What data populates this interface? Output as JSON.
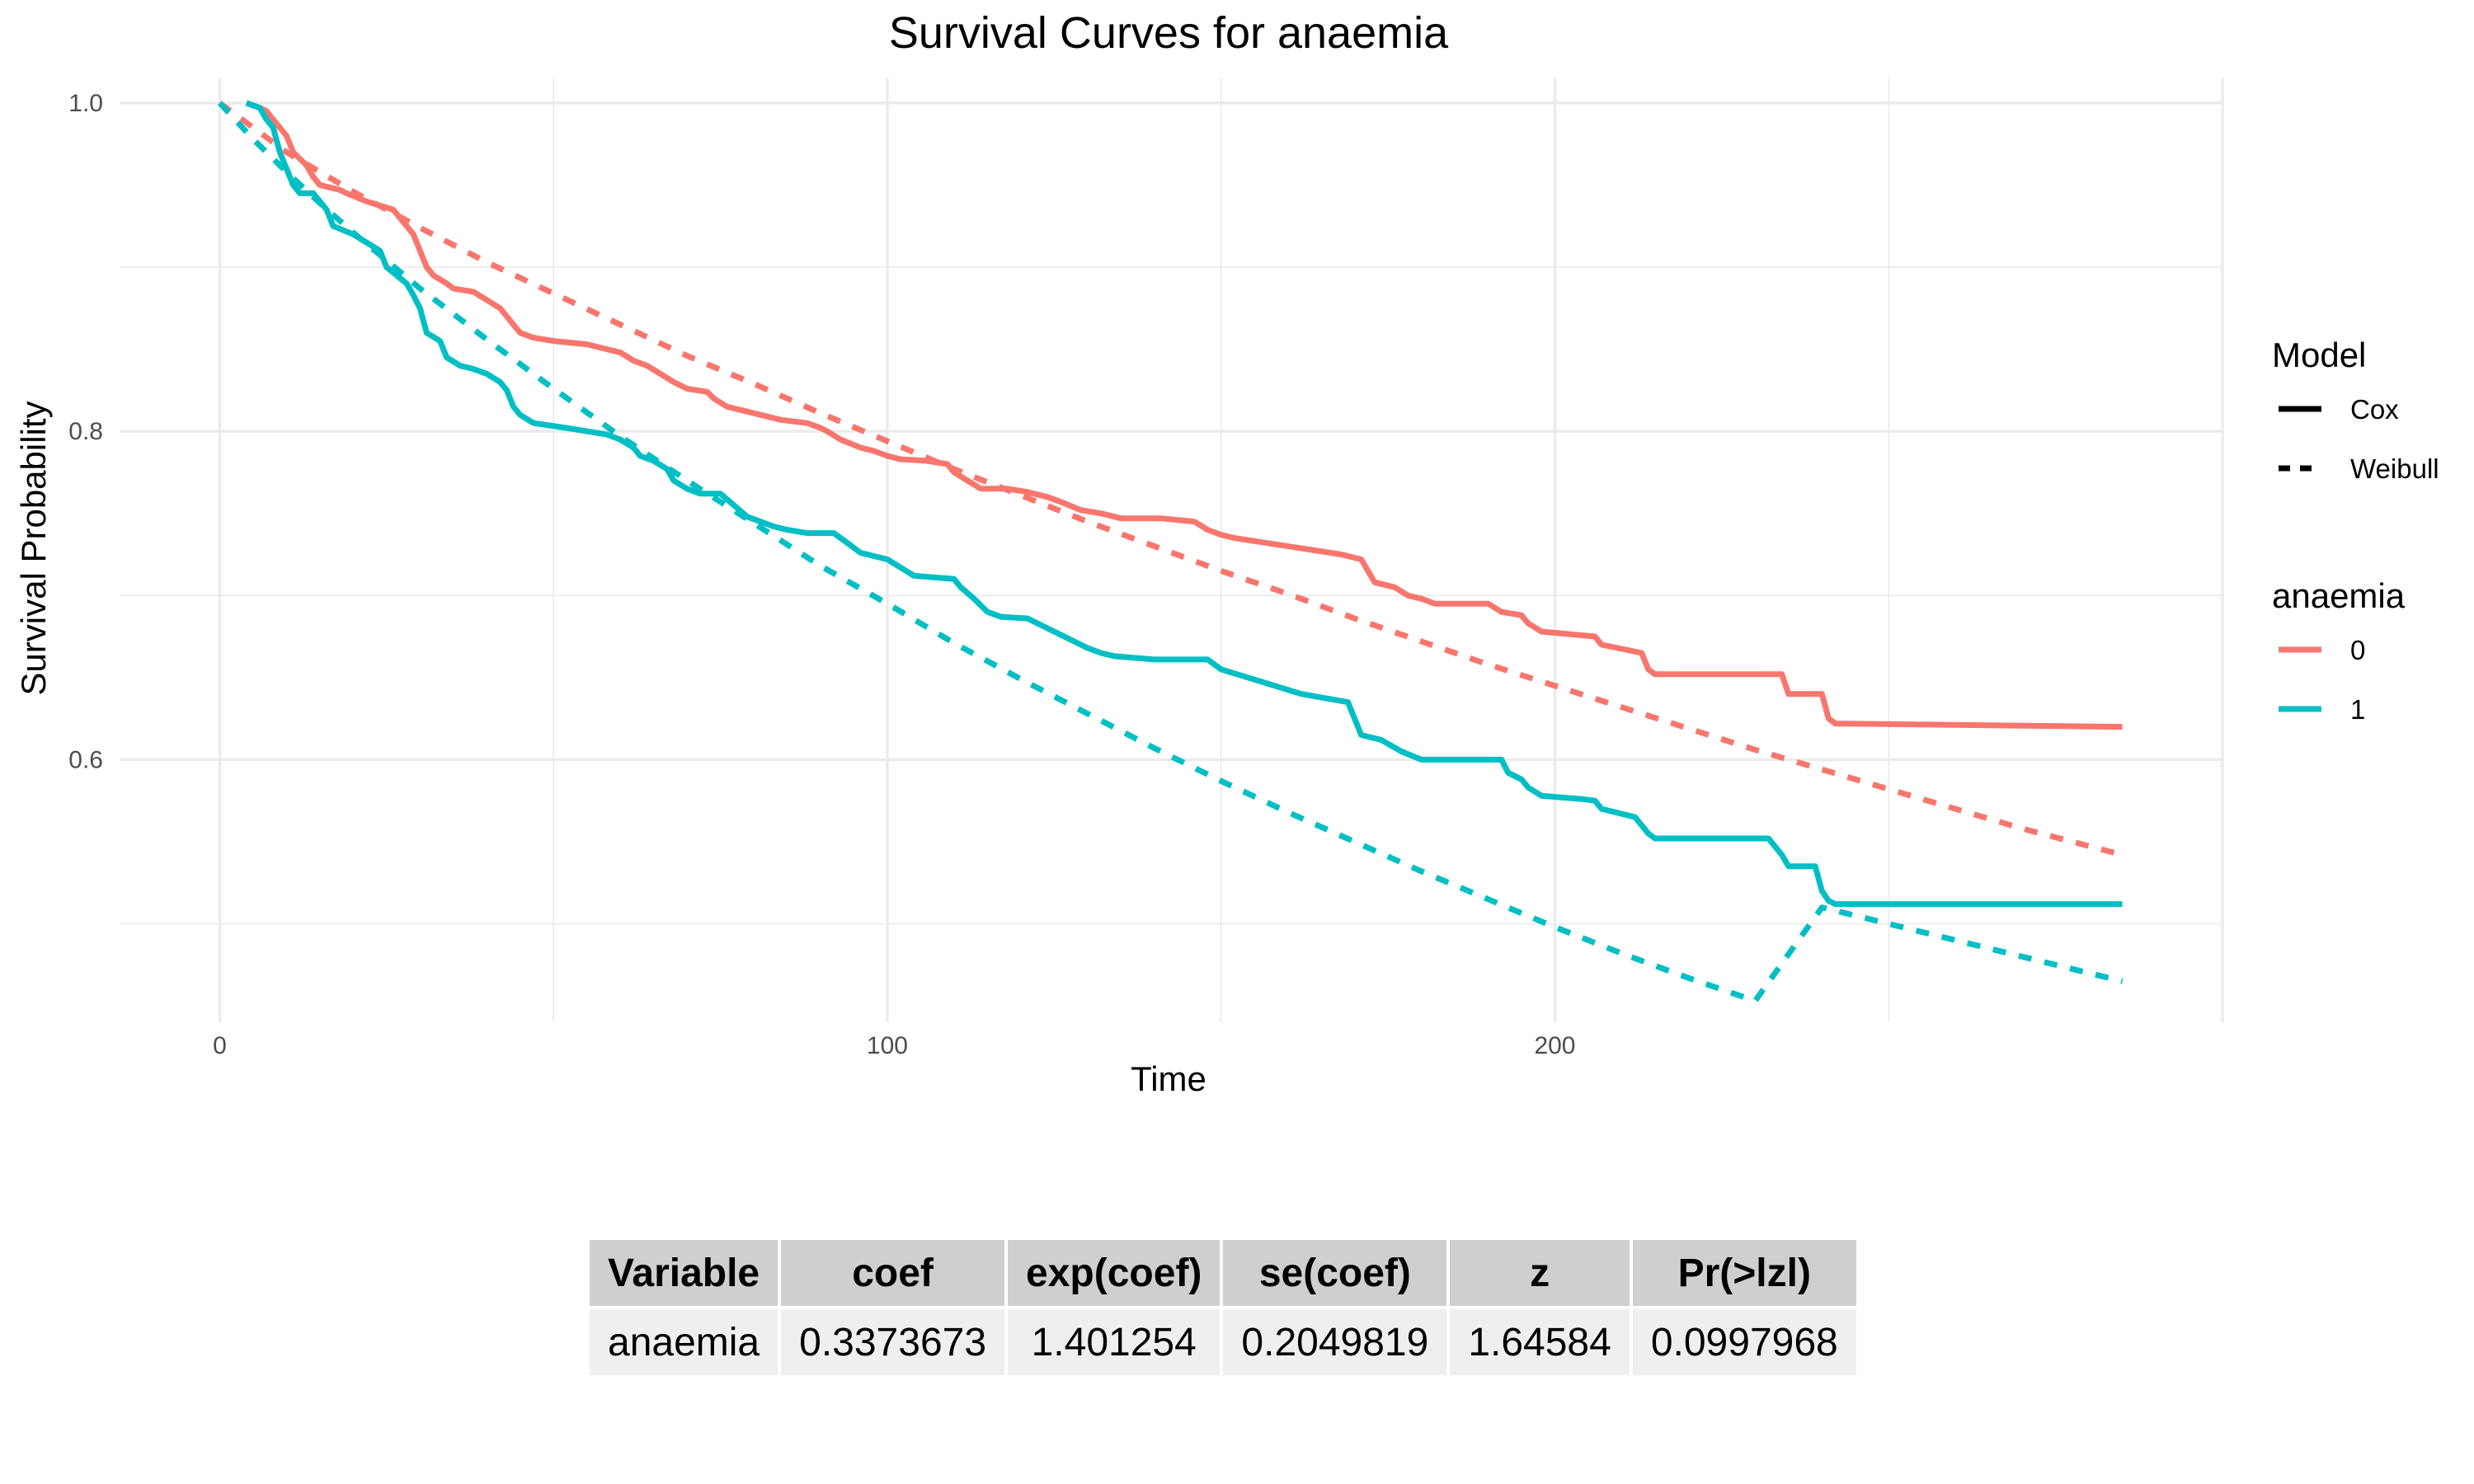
{
  "chart_data": {
    "type": "line",
    "title": "Survival Curves for anaemia",
    "xlabel": "Time",
    "ylabel": "Survival Probability",
    "xlim": [
      -15,
      300
    ],
    "ylim": [
      0.44,
      1.015
    ],
    "x_ticks": [
      0,
      100,
      200
    ],
    "x_tick_labels": [
      "0",
      "100",
      "200"
    ],
    "y_ticks": [
      0.6,
      0.8,
      1.0
    ],
    "y_tick_labels": [
      "0.6",
      "0.8",
      "1.0"
    ],
    "grid": true,
    "legend_position": "right",
    "colors": {
      "0": "#F8766D",
      "1": "#00BFC4"
    },
    "legends": [
      {
        "title": "Model",
        "items": [
          {
            "label": "Cox",
            "linetype": "solid"
          },
          {
            "label": "Weibull",
            "linetype": "dashed"
          }
        ]
      },
      {
        "title": "anaemia",
        "items": [
          {
            "label": "0",
            "color": "#F8766D"
          },
          {
            "label": "1",
            "color": "#00BFC4"
          }
        ]
      }
    ],
    "series": [
      {
        "model": "Cox",
        "group": "0",
        "linetype": "solid",
        "color": "#F8766D",
        "points": [
          [
            4,
            1.0
          ],
          [
            6,
            0.997
          ],
          [
            7,
            0.995
          ],
          [
            8,
            0.99
          ],
          [
            10,
            0.98
          ],
          [
            11,
            0.97
          ],
          [
            13,
            0.962
          ],
          [
            14,
            0.955
          ],
          [
            15,
            0.95
          ],
          [
            18,
            0.947
          ],
          [
            19,
            0.945
          ],
          [
            22,
            0.94
          ],
          [
            26,
            0.935
          ],
          [
            27,
            0.93
          ],
          [
            28,
            0.925
          ],
          [
            29,
            0.92
          ],
          [
            30,
            0.91
          ],
          [
            31,
            0.9
          ],
          [
            32,
            0.895
          ],
          [
            34,
            0.89
          ],
          [
            35,
            0.887
          ],
          [
            38,
            0.885
          ],
          [
            40,
            0.88
          ],
          [
            42,
            0.875
          ],
          [
            44,
            0.865
          ],
          [
            45,
            0.86
          ],
          [
            47,
            0.857
          ],
          [
            50,
            0.855
          ],
          [
            55,
            0.853
          ],
          [
            58,
            0.85
          ],
          [
            60,
            0.848
          ],
          [
            62,
            0.843
          ],
          [
            64,
            0.84
          ],
          [
            66,
            0.835
          ],
          [
            68,
            0.83
          ],
          [
            70,
            0.826
          ],
          [
            73,
            0.824
          ],
          [
            74,
            0.82
          ],
          [
            76,
            0.815
          ],
          [
            79,
            0.812
          ],
          [
            81,
            0.81
          ],
          [
            84,
            0.807
          ],
          [
            88,
            0.805
          ],
          [
            90,
            0.802
          ],
          [
            91,
            0.8
          ],
          [
            93,
            0.795
          ],
          [
            96,
            0.79
          ],
          [
            98,
            0.788
          ],
          [
            100,
            0.785
          ],
          [
            102,
            0.783
          ],
          [
            106,
            0.782
          ],
          [
            109,
            0.78
          ],
          [
            110,
            0.775
          ],
          [
            112,
            0.77
          ],
          [
            114,
            0.765
          ],
          [
            118,
            0.765
          ],
          [
            121,
            0.763
          ],
          [
            124,
            0.76
          ],
          [
            126,
            0.757
          ],
          [
            129,
            0.752
          ],
          [
            132,
            0.75
          ],
          [
            135,
            0.747
          ],
          [
            141,
            0.747
          ],
          [
            146,
            0.745
          ],
          [
            148,
            0.74
          ],
          [
            150,
            0.737
          ],
          [
            152,
            0.735
          ],
          [
            168,
            0.725
          ],
          [
            171,
            0.722
          ],
          [
            172,
            0.715
          ],
          [
            173,
            0.708
          ],
          [
            176,
            0.705
          ],
          [
            178,
            0.7
          ],
          [
            180,
            0.698
          ],
          [
            182,
            0.695
          ],
          [
            190,
            0.695
          ],
          [
            192,
            0.69
          ],
          [
            195,
            0.688
          ],
          [
            196,
            0.683
          ],
          [
            198,
            0.678
          ],
          [
            206,
            0.675
          ],
          [
            207,
            0.67
          ],
          [
            213,
            0.665
          ],
          [
            214,
            0.655
          ],
          [
            215,
            0.652
          ],
          [
            225,
            0.652
          ],
          [
            234,
            0.652
          ],
          [
            235,
            0.64
          ],
          [
            240,
            0.64
          ],
          [
            241,
            0.625
          ],
          [
            242,
            0.622
          ],
          [
            285,
            0.62
          ]
        ]
      },
      {
        "model": "Cox",
        "group": "1",
        "linetype": "solid",
        "color": "#00BFC4",
        "points": [
          [
            4,
            1.0
          ],
          [
            6,
            0.997
          ],
          [
            7,
            0.99
          ],
          [
            8,
            0.985
          ],
          [
            9,
            0.97
          ],
          [
            10,
            0.96
          ],
          [
            11,
            0.95
          ],
          [
            12,
            0.945
          ],
          [
            14,
            0.945
          ],
          [
            15,
            0.94
          ],
          [
            16,
            0.935
          ],
          [
            17,
            0.925
          ],
          [
            20,
            0.92
          ],
          [
            22,
            0.915
          ],
          [
            24,
            0.91
          ],
          [
            25,
            0.9
          ],
          [
            28,
            0.89
          ],
          [
            29,
            0.883
          ],
          [
            30,
            0.875
          ],
          [
            31,
            0.86
          ],
          [
            33,
            0.855
          ],
          [
            34,
            0.845
          ],
          [
            36,
            0.84
          ],
          [
            38,
            0.838
          ],
          [
            40,
            0.835
          ],
          [
            42,
            0.83
          ],
          [
            43,
            0.825
          ],
          [
            44,
            0.815
          ],
          [
            45,
            0.81
          ],
          [
            47,
            0.805
          ],
          [
            52,
            0.802
          ],
          [
            55,
            0.8
          ],
          [
            58,
            0.798
          ],
          [
            60,
            0.795
          ],
          [
            62,
            0.79
          ],
          [
            63,
            0.785
          ],
          [
            65,
            0.782
          ],
          [
            67,
            0.777
          ],
          [
            68,
            0.77
          ],
          [
            70,
            0.765
          ],
          [
            72,
            0.762
          ],
          [
            75,
            0.762
          ],
          [
            77,
            0.755
          ],
          [
            79,
            0.748
          ],
          [
            81,
            0.745
          ],
          [
            83,
            0.742
          ],
          [
            85,
            0.74
          ],
          [
            88,
            0.738
          ],
          [
            92,
            0.738
          ],
          [
            94,
            0.732
          ],
          [
            96,
            0.726
          ],
          [
            100,
            0.722
          ],
          [
            102,
            0.717
          ],
          [
            104,
            0.712
          ],
          [
            110,
            0.71
          ],
          [
            111,
            0.705
          ],
          [
            113,
            0.698
          ],
          [
            115,
            0.69
          ],
          [
            117,
            0.687
          ],
          [
            121,
            0.686
          ],
          [
            124,
            0.68
          ],
          [
            127,
            0.674
          ],
          [
            130,
            0.668
          ],
          [
            132,
            0.665
          ],
          [
            134,
            0.663
          ],
          [
            140,
            0.661
          ],
          [
            148,
            0.661
          ],
          [
            150,
            0.655
          ],
          [
            154,
            0.65
          ],
          [
            162,
            0.64
          ],
          [
            169,
            0.635
          ],
          [
            170,
            0.625
          ],
          [
            171,
            0.615
          ],
          [
            174,
            0.612
          ],
          [
            177,
            0.605
          ],
          [
            180,
            0.6
          ],
          [
            185,
            0.6
          ],
          [
            192,
            0.6
          ],
          [
            193,
            0.592
          ],
          [
            195,
            0.588
          ],
          [
            196,
            0.583
          ],
          [
            198,
            0.578
          ],
          [
            204,
            0.576
          ],
          [
            206,
            0.575
          ],
          [
            207,
            0.57
          ],
          [
            212,
            0.565
          ],
          [
            213,
            0.56
          ],
          [
            214,
            0.555
          ],
          [
            215,
            0.552
          ],
          [
            232,
            0.552
          ],
          [
            234,
            0.542
          ],
          [
            235,
            0.535
          ],
          [
            239,
            0.535
          ],
          [
            240,
            0.52
          ],
          [
            241,
            0.514
          ],
          [
            242,
            0.512
          ],
          [
            285,
            0.512
          ]
        ]
      },
      {
        "model": "Weibull",
        "group": "0",
        "linetype": "dashed",
        "color": "#F8766D",
        "points": [
          [
            0,
            1.0
          ],
          [
            5,
            0.985
          ],
          [
            10,
            0.97
          ],
          [
            15,
            0.958
          ],
          [
            20,
            0.946
          ],
          [
            25,
            0.935
          ],
          [
            30,
            0.924
          ],
          [
            40,
            0.903
          ],
          [
            50,
            0.884
          ],
          [
            60,
            0.865
          ],
          [
            70,
            0.846
          ],
          [
            80,
            0.829
          ],
          [
            90,
            0.811
          ],
          [
            100,
            0.794
          ],
          [
            110,
            0.777
          ],
          [
            120,
            0.761
          ],
          [
            130,
            0.745
          ],
          [
            140,
            0.73
          ],
          [
            150,
            0.715
          ],
          [
            160,
            0.701
          ],
          [
            170,
            0.686
          ],
          [
            180,
            0.672
          ],
          [
            190,
            0.658
          ],
          [
            200,
            0.645
          ],
          [
            210,
            0.632
          ],
          [
            220,
            0.619
          ],
          [
            230,
            0.606
          ],
          [
            240,
            0.594
          ],
          [
            250,
            0.582
          ],
          [
            260,
            0.57
          ],
          [
            270,
            0.558
          ],
          [
            285,
            0.542
          ]
        ]
      },
      {
        "model": "Weibull",
        "group": "1",
        "linetype": "dashed",
        "color": "#00BFC4",
        "points": [
          [
            0,
            1.0
          ],
          [
            5,
            0.978
          ],
          [
            10,
            0.958
          ],
          [
            15,
            0.939
          ],
          [
            20,
            0.921
          ],
          [
            25,
            0.904
          ],
          [
            30,
            0.887
          ],
          [
            40,
            0.856
          ],
          [
            50,
            0.826
          ],
          [
            60,
            0.797
          ],
          [
            70,
            0.77
          ],
          [
            80,
            0.744
          ],
          [
            90,
            0.718
          ],
          [
            100,
            0.695
          ],
          [
            110,
            0.671
          ],
          [
            120,
            0.649
          ],
          [
            130,
            0.628
          ],
          [
            140,
            0.607
          ],
          [
            150,
            0.587
          ],
          [
            160,
            0.568
          ],
          [
            170,
            0.55
          ],
          [
            180,
            0.532
          ],
          [
            190,
            0.515
          ],
          [
            200,
            0.498
          ],
          [
            210,
            0.482
          ],
          [
            220,
            0.467
          ],
          [
            230,
            0.453
          ],
          [
            240,
            0.51
          ],
          [
            250,
            0.5
          ],
          [
            260,
            0.49
          ],
          [
            270,
            0.48
          ],
          [
            285,
            0.465
          ]
        ]
      }
    ],
    "table": {
      "columns": [
        "Variable",
        "coef",
        "exp(coef)",
        "se(coef)",
        "z",
        "Pr(>lzl)"
      ],
      "rows": [
        [
          "anaemia",
          "0.3373673",
          "1.401254",
          "0.2049819",
          "1.64584",
          "0.0997968"
        ]
      ]
    }
  }
}
